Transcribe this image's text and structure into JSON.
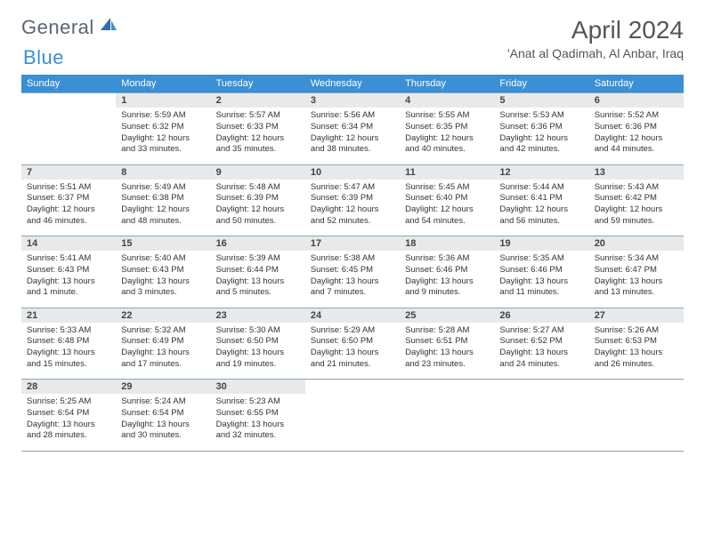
{
  "logo": {
    "general": "General",
    "blue": "Blue"
  },
  "title": "April 2024",
  "location": "'Anat al Qadimah, Al Anbar, Iraq",
  "colors": {
    "header_bg": "#3b8fd4",
    "header_text": "#ffffff",
    "daynum_bg": "#e8e9ea",
    "border": "#8aa5b8",
    "text": "#333333",
    "logo_gray": "#5a6570",
    "logo_blue": "#3b8fd4",
    "title_color": "#555555",
    "page_bg": "#ffffff"
  },
  "type": "calendar-table",
  "columns": [
    "Sunday",
    "Monday",
    "Tuesday",
    "Wednesday",
    "Thursday",
    "Friday",
    "Saturday"
  ],
  "weeks": [
    [
      null,
      {
        "n": "1",
        "sr": "5:59 AM",
        "ss": "6:32 PM",
        "dl": "12 hours and 33 minutes."
      },
      {
        "n": "2",
        "sr": "5:57 AM",
        "ss": "6:33 PM",
        "dl": "12 hours and 35 minutes."
      },
      {
        "n": "3",
        "sr": "5:56 AM",
        "ss": "6:34 PM",
        "dl": "12 hours and 38 minutes."
      },
      {
        "n": "4",
        "sr": "5:55 AM",
        "ss": "6:35 PM",
        "dl": "12 hours and 40 minutes."
      },
      {
        "n": "5",
        "sr": "5:53 AM",
        "ss": "6:36 PM",
        "dl": "12 hours and 42 minutes."
      },
      {
        "n": "6",
        "sr": "5:52 AM",
        "ss": "6:36 PM",
        "dl": "12 hours and 44 minutes."
      }
    ],
    [
      {
        "n": "7",
        "sr": "5:51 AM",
        "ss": "6:37 PM",
        "dl": "12 hours and 46 minutes."
      },
      {
        "n": "8",
        "sr": "5:49 AM",
        "ss": "6:38 PM",
        "dl": "12 hours and 48 minutes."
      },
      {
        "n": "9",
        "sr": "5:48 AM",
        "ss": "6:39 PM",
        "dl": "12 hours and 50 minutes."
      },
      {
        "n": "10",
        "sr": "5:47 AM",
        "ss": "6:39 PM",
        "dl": "12 hours and 52 minutes."
      },
      {
        "n": "11",
        "sr": "5:45 AM",
        "ss": "6:40 PM",
        "dl": "12 hours and 54 minutes."
      },
      {
        "n": "12",
        "sr": "5:44 AM",
        "ss": "6:41 PM",
        "dl": "12 hours and 56 minutes."
      },
      {
        "n": "13",
        "sr": "5:43 AM",
        "ss": "6:42 PM",
        "dl": "12 hours and 59 minutes."
      }
    ],
    [
      {
        "n": "14",
        "sr": "5:41 AM",
        "ss": "6:43 PM",
        "dl": "13 hours and 1 minute."
      },
      {
        "n": "15",
        "sr": "5:40 AM",
        "ss": "6:43 PM",
        "dl": "13 hours and 3 minutes."
      },
      {
        "n": "16",
        "sr": "5:39 AM",
        "ss": "6:44 PM",
        "dl": "13 hours and 5 minutes."
      },
      {
        "n": "17",
        "sr": "5:38 AM",
        "ss": "6:45 PM",
        "dl": "13 hours and 7 minutes."
      },
      {
        "n": "18",
        "sr": "5:36 AM",
        "ss": "6:46 PM",
        "dl": "13 hours and 9 minutes."
      },
      {
        "n": "19",
        "sr": "5:35 AM",
        "ss": "6:46 PM",
        "dl": "13 hours and 11 minutes."
      },
      {
        "n": "20",
        "sr": "5:34 AM",
        "ss": "6:47 PM",
        "dl": "13 hours and 13 minutes."
      }
    ],
    [
      {
        "n": "21",
        "sr": "5:33 AM",
        "ss": "6:48 PM",
        "dl": "13 hours and 15 minutes."
      },
      {
        "n": "22",
        "sr": "5:32 AM",
        "ss": "6:49 PM",
        "dl": "13 hours and 17 minutes."
      },
      {
        "n": "23",
        "sr": "5:30 AM",
        "ss": "6:50 PM",
        "dl": "13 hours and 19 minutes."
      },
      {
        "n": "24",
        "sr": "5:29 AM",
        "ss": "6:50 PM",
        "dl": "13 hours and 21 minutes."
      },
      {
        "n": "25",
        "sr": "5:28 AM",
        "ss": "6:51 PM",
        "dl": "13 hours and 23 minutes."
      },
      {
        "n": "26",
        "sr": "5:27 AM",
        "ss": "6:52 PM",
        "dl": "13 hours and 24 minutes."
      },
      {
        "n": "27",
        "sr": "5:26 AM",
        "ss": "6:53 PM",
        "dl": "13 hours and 26 minutes."
      }
    ],
    [
      {
        "n": "28",
        "sr": "5:25 AM",
        "ss": "6:54 PM",
        "dl": "13 hours and 28 minutes."
      },
      {
        "n": "29",
        "sr": "5:24 AM",
        "ss": "6:54 PM",
        "dl": "13 hours and 30 minutes."
      },
      {
        "n": "30",
        "sr": "5:23 AM",
        "ss": "6:55 PM",
        "dl": "13 hours and 32 minutes."
      },
      null,
      null,
      null,
      null
    ]
  ],
  "labels": {
    "sunrise": "Sunrise:",
    "sunset": "Sunset:",
    "daylight": "Daylight:"
  }
}
